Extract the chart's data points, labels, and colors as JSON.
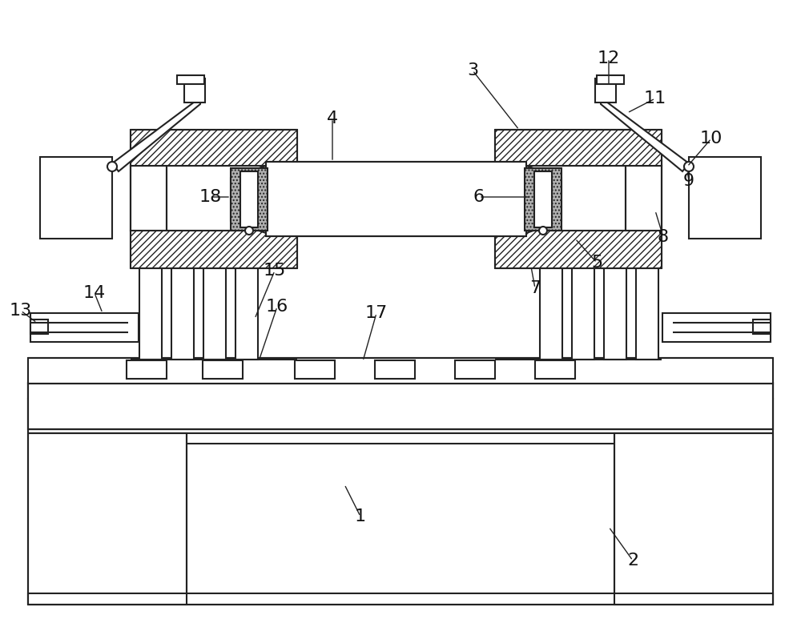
{
  "line_color": "#222222",
  "annotations": [
    [
      "1",
      450,
      645,
      430,
      605
    ],
    [
      "2",
      790,
      700,
      760,
      658
    ],
    [
      "3",
      590,
      88,
      648,
      162
    ],
    [
      "4",
      415,
      148,
      415,
      202
    ],
    [
      "5",
      745,
      328,
      718,
      298
    ],
    [
      "6",
      598,
      246,
      663,
      246
    ],
    [
      "7",
      668,
      360,
      663,
      333
    ],
    [
      "8",
      828,
      296,
      818,
      263
    ],
    [
      "9",
      860,
      226,
      858,
      213
    ],
    [
      "10",
      888,
      173,
      858,
      208
    ],
    [
      "11",
      818,
      123,
      783,
      141
    ],
    [
      "12",
      760,
      73,
      760,
      108
    ],
    [
      "13",
      26,
      388,
      46,
      403
    ],
    [
      "14",
      118,
      366,
      128,
      391
    ],
    [
      "15",
      343,
      338,
      318,
      398
    ],
    [
      "16",
      346,
      383,
      323,
      451
    ],
    [
      "17",
      470,
      391,
      453,
      451
    ],
    [
      "18",
      263,
      246,
      288,
      246
    ]
  ]
}
